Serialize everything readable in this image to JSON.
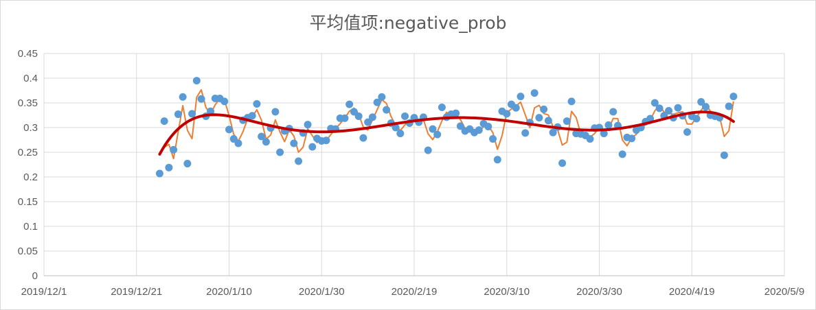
{
  "chart_data": {
    "type": "scatter",
    "title": "平均值项:negative_prob",
    "xlabel": "",
    "ylabel": "",
    "ylim": [
      0,
      0.45
    ],
    "xlim": [
      "2019-12-01",
      "2020-05-09"
    ],
    "y_ticks": [
      "0",
      "0.05",
      "0.1",
      "0.15",
      "0.2",
      "0.25",
      "0.3",
      "0.35",
      "0.4",
      "0.45"
    ],
    "x_ticks": [
      {
        "label": "2019/12/1",
        "date": "2019-12-01"
      },
      {
        "label": "2019/12/21",
        "date": "2019-12-21"
      },
      {
        "label": "2020/1/10",
        "date": "2020-01-10"
      },
      {
        "label": "2020/1/30",
        "date": "2020-01-30"
      },
      {
        "label": "2020/2/19",
        "date": "2020-02-19"
      },
      {
        "label": "2020/3/10",
        "date": "2020-03-10"
      },
      {
        "label": "2020/3/30",
        "date": "2020-03-30"
      },
      {
        "label": "2020/4/19",
        "date": "2020-04-19"
      },
      {
        "label": "2020/5/9",
        "date": "2020-05-09"
      }
    ],
    "grid": true,
    "legend": "none",
    "colors": {
      "points": "#5b9bd5",
      "moving_average": "#ed7d31",
      "trend": "#c00000"
    },
    "series": [
      {
        "kind": "points",
        "x_start": "2019-12-26",
        "values": [
          0.207,
          0.313,
          0.219,
          0.255,
          0.327,
          0.362,
          0.227,
          0.328,
          0.395,
          0.358,
          0.323,
          0.333,
          0.359,
          0.359,
          0.353,
          0.296,
          0.277,
          0.268,
          0.315,
          0.32,
          0.324,
          0.348,
          0.282,
          0.271,
          0.299,
          0.332,
          0.25,
          0.293,
          0.298,
          0.268,
          0.232,
          0.289,
          0.306,
          0.261,
          0.278,
          0.273,
          0.274,
          0.298,
          0.297,
          0.319,
          0.319,
          0.347,
          0.332,
          0.323,
          0.279,
          0.311,
          0.321,
          0.351,
          0.362,
          0.336,
          0.309,
          0.3,
          0.288,
          0.323,
          0.309,
          0.32,
          0.311,
          0.321,
          0.254,
          0.297,
          0.286,
          0.341,
          0.321,
          0.327,
          0.329,
          0.303,
          0.293,
          0.297,
          0.29,
          0.295,
          0.308,
          0.302,
          0.277,
          0.235,
          0.333,
          0.328,
          0.347,
          0.34,
          0.363,
          0.289,
          0.31,
          0.37,
          0.32,
          0.337,
          0.314,
          0.29,
          0.301,
          0.228,
          0.313,
          0.353,
          0.288,
          0.287,
          0.284,
          0.277,
          0.299,
          0.3,
          0.288,
          0.305,
          0.332,
          0.304,
          0.246,
          0.28,
          0.278,
          0.295,
          0.3,
          0.312,
          0.318,
          0.35,
          0.339,
          0.324,
          0.334,
          0.32,
          0.34,
          0.324,
          0.291,
          0.323,
          0.318,
          0.352,
          0.342,
          0.325,
          0.323,
          0.32,
          0.244,
          0.343,
          0.363
        ]
      },
      {
        "kind": "moving_average",
        "period": 2
      },
      {
        "kind": "polynomial_trend"
      }
    ]
  }
}
